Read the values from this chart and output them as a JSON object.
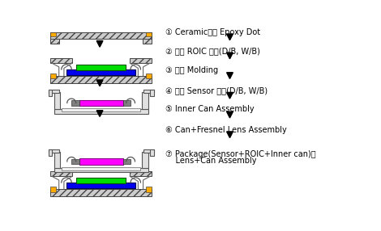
{
  "bg_color": "#ffffff",
  "steps": [
    "① Ceramic기판 Epoxy Dot",
    "② 하단 ROIC 부착(D/B, W/B)",
    "③ 하단 Molding",
    "④ 상단 Sensor 부착(D/B, W/B)",
    "⑤ Inner Can Assembly",
    "⑥ Can+Fresnel Lens Assembly",
    "⑦ Package(Sensor+ROIC+Inner can)에",
    "    Lens+Can Assembly"
  ],
  "green_color": "#00dd00",
  "blue_color": "#0000ee",
  "magenta_color": "#ff00ff",
  "orange_color": "#ffaa00",
  "gray_color": "#808080",
  "hatch_face": "#cccccc"
}
